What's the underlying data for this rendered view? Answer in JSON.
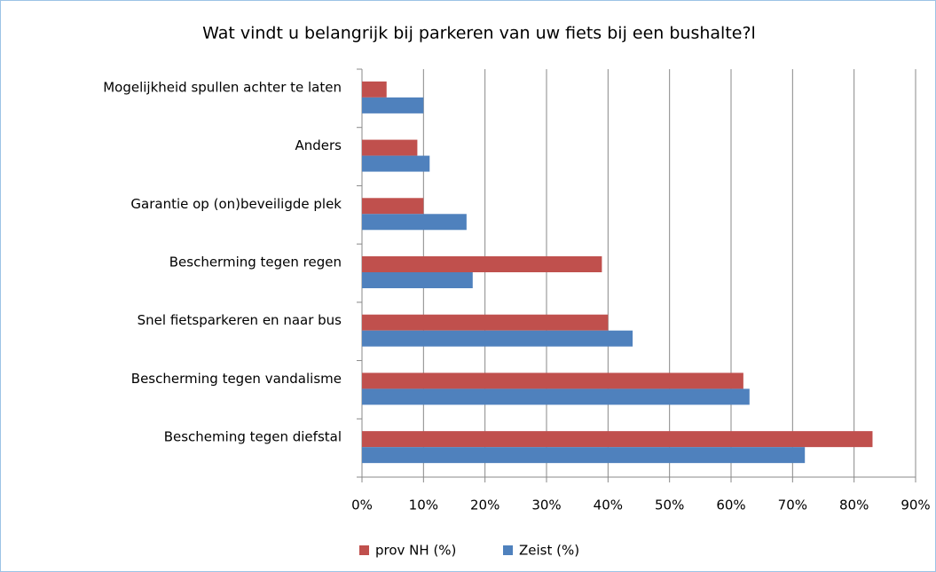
{
  "chart_data": {
    "type": "barh",
    "title": "Wat vindt u belangrijk bij parkeren van uw fiets bij  een bushalte?l",
    "categories": [
      "Mogelijkheid spullen achter te laten",
      "Anders",
      "Garantie op (on)beveiligde plek",
      "Bescherming tegen regen",
      "Snel fietsparkeren en naar bus",
      "Bescherming tegen vandalisme",
      "Bescheming tegen diefstal"
    ],
    "series": [
      {
        "name": "prov NH (%)",
        "color": "#c0504d",
        "values": [
          4,
          9,
          10,
          39,
          40,
          62,
          83
        ]
      },
      {
        "name": "Zeist (%)",
        "color": "#4f81bd",
        "values": [
          10,
          11,
          17,
          18,
          44,
          63,
          72
        ]
      }
    ],
    "xlim": [
      0,
      90
    ],
    "xticks": [
      {
        "value": 0,
        "label": "0%"
      },
      {
        "value": 10,
        "label": "10%"
      },
      {
        "value": 20,
        "label": "20%"
      },
      {
        "value": 30,
        "label": "30%"
      },
      {
        "value": 40,
        "label": "40%"
      },
      {
        "value": 50,
        "label": "50%"
      },
      {
        "value": 60,
        "label": "60%"
      },
      {
        "value": 70,
        "label": "70%"
      },
      {
        "value": 80,
        "label": "80%"
      },
      {
        "value": 90,
        "label": "90%"
      }
    ],
    "grid": true,
    "legend": "bottom"
  }
}
